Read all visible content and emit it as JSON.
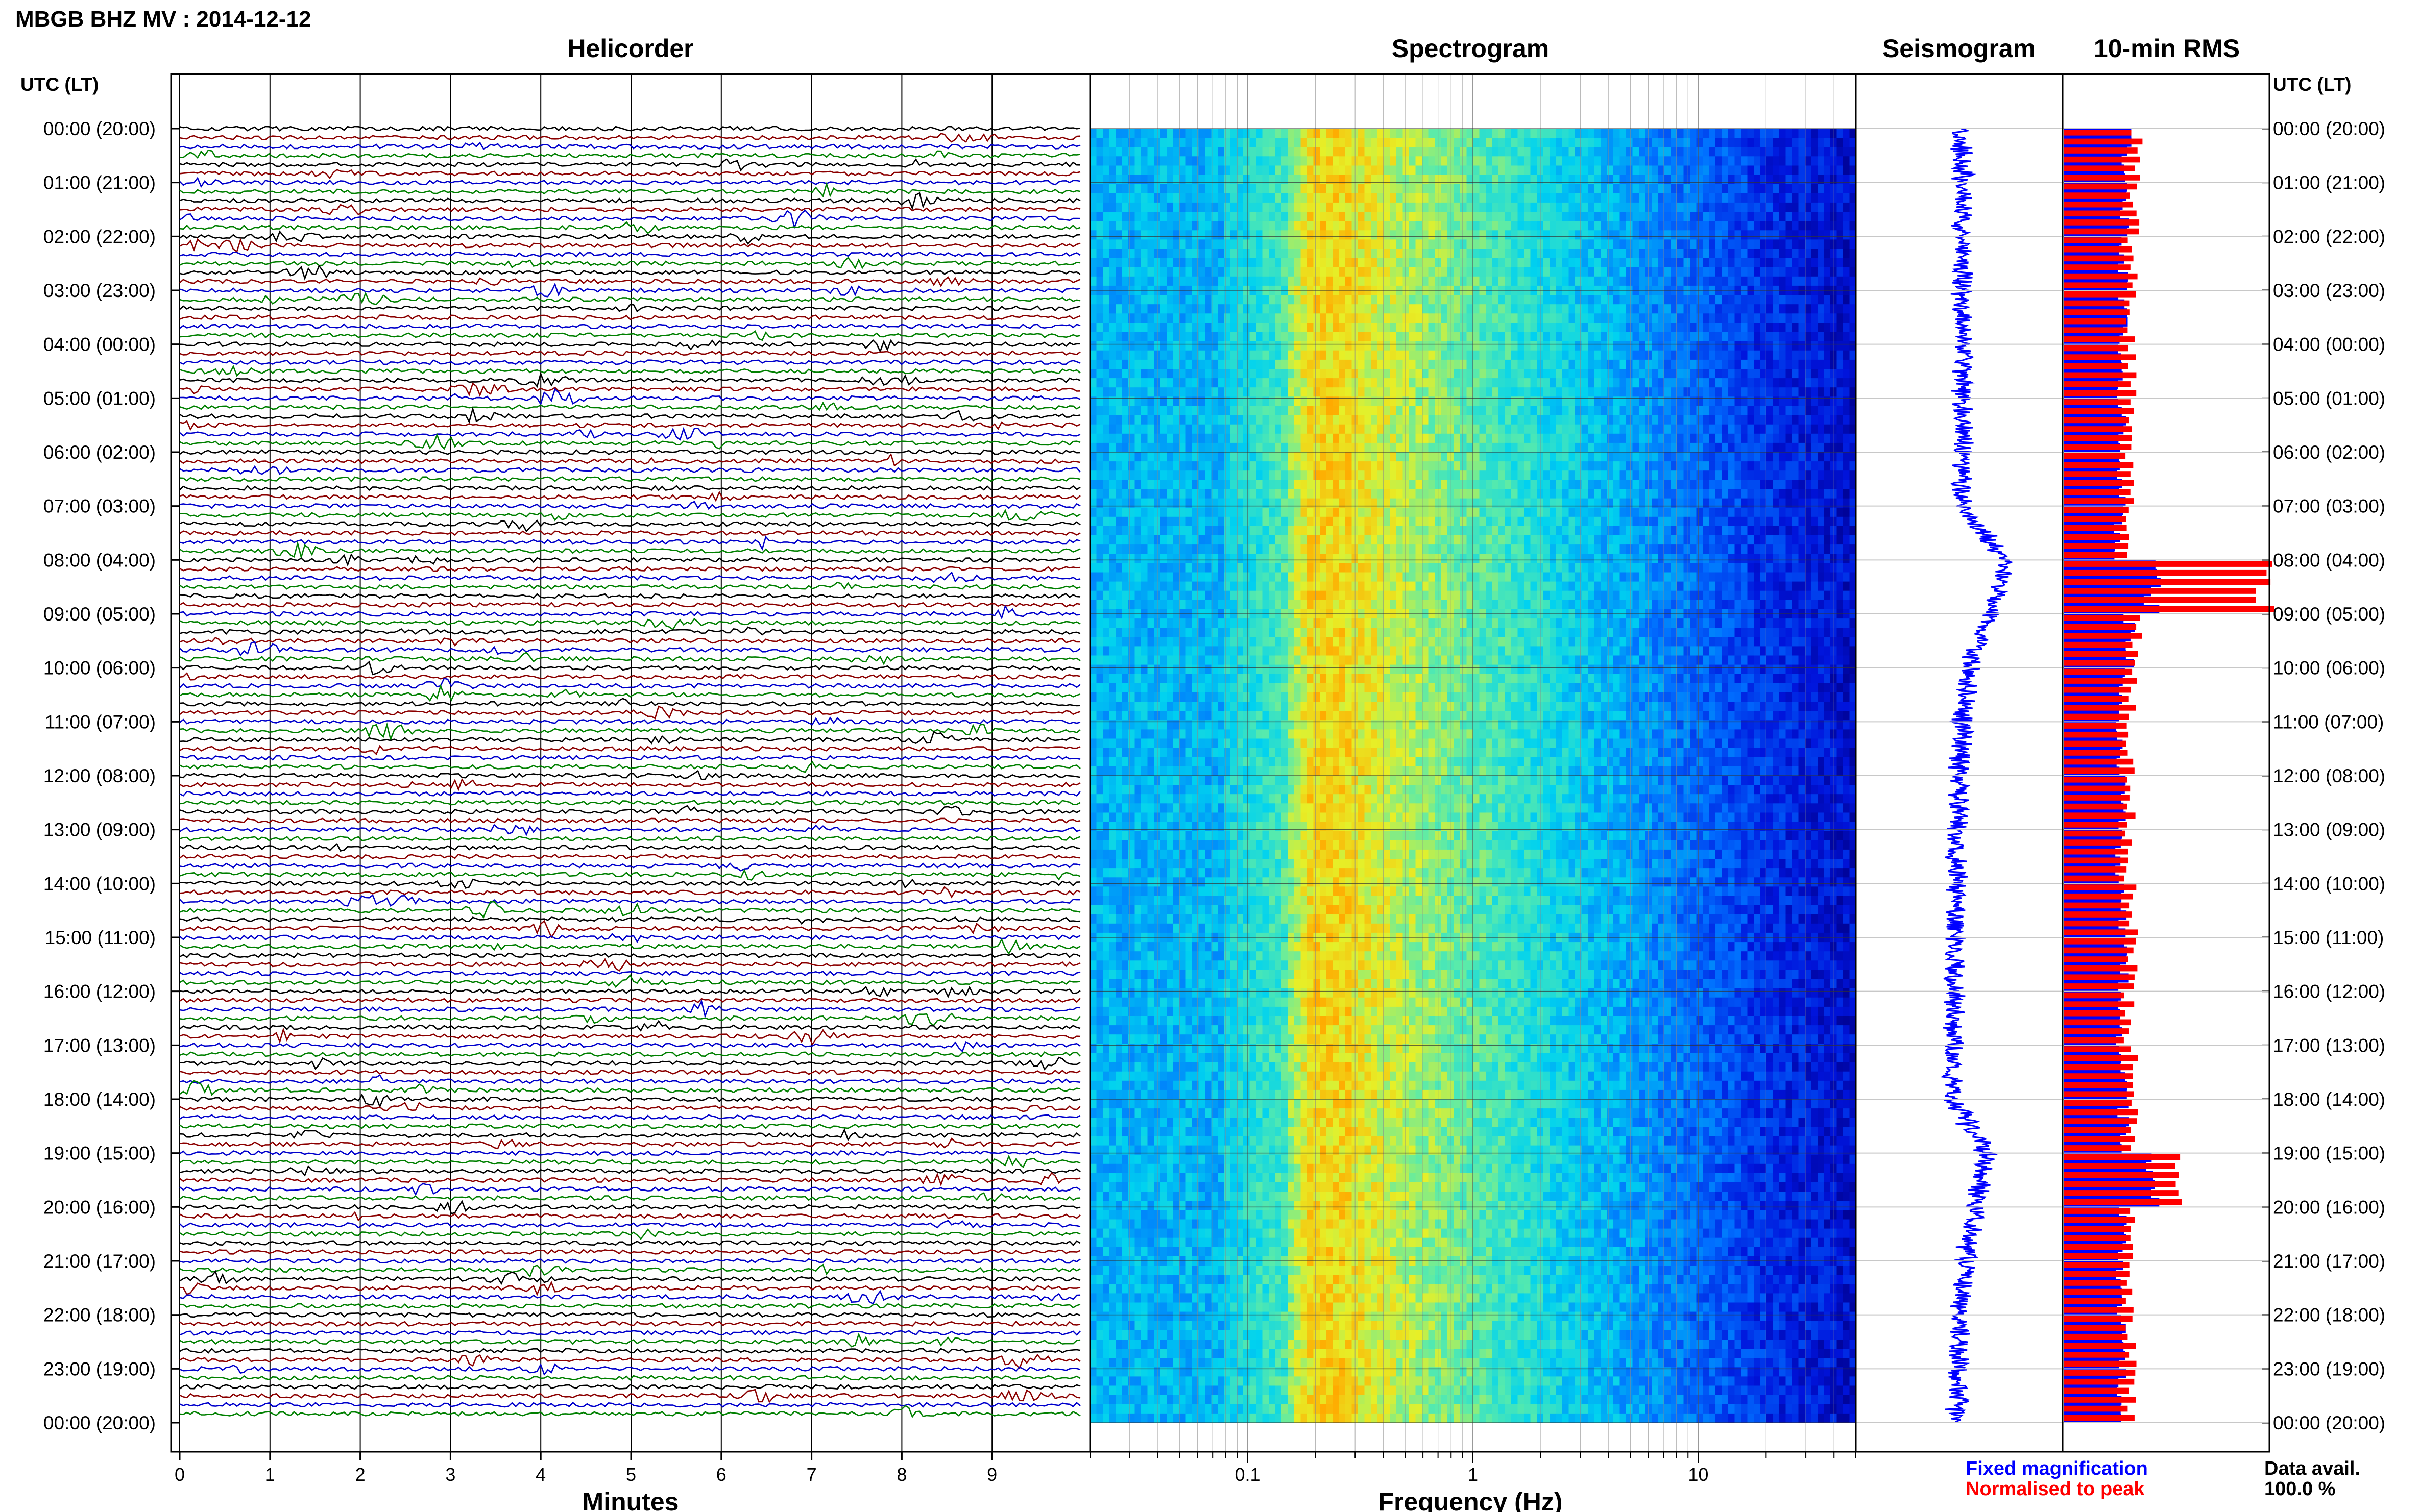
{
  "header": {
    "title": "MBGB BHZ MV : 2014-12-12"
  },
  "panels": {
    "helicorder": "Helicorder",
    "spectrogram": "Spectrogram",
    "seismogram": "Seismogram",
    "rms": "10-min RMS"
  },
  "axes": {
    "time_label_left": "UTC (LT)",
    "time_label_right": "UTC (LT)",
    "helicorder_xlabel": "Minutes",
    "spectrogram_xlabel": "Frequency (Hz)"
  },
  "legend": {
    "fixed": "Fixed magnification",
    "normalised": "Normalised to peak",
    "data_avail_label": "Data avail.",
    "data_avail_value": "100.0 %"
  },
  "colors": {
    "helicorder_traces": [
      "#000000",
      "#8b0000",
      "#0000cc",
      "#008000"
    ],
    "fixed_magnification": "#0000ff",
    "normalised_to_peak": "#ff0000"
  },
  "chart_data": [
    {
      "type": "line",
      "title": "Helicorder",
      "xlabel": "Minutes",
      "xlim": [
        0,
        10
      ],
      "x_ticks": [
        "0",
        "1",
        "2",
        "3",
        "4",
        "5",
        "6",
        "7",
        "8",
        "9"
      ],
      "ylabel": "UTC (LT)",
      "trace_minutes": 10,
      "traces_per_hour": 6,
      "time_ticks": [
        "00:00 (20:00)",
        "01:00 (21:00)",
        "02:00 (22:00)",
        "03:00 (23:00)",
        "04:00 (00:00)",
        "05:00 (01:00)",
        "06:00 (02:00)",
        "07:00 (03:00)",
        "08:00 (04:00)",
        "09:00 (05:00)",
        "10:00 (06:00)",
        "11:00 (07:00)",
        "12:00 (08:00)",
        "13:00 (09:00)",
        "14:00 (10:00)",
        "15:00 (11:00)",
        "16:00 (12:00)",
        "17:00 (13:00)",
        "18:00 (14:00)",
        "19:00 (15:00)",
        "20:00 (16:00)",
        "21:00 (17:00)",
        "22:00 (18:00)",
        "23:00 (19:00)",
        "00:00 (20:00)"
      ]
    },
    {
      "type": "heatmap",
      "title": "Spectrogram",
      "xlabel": "Frequency (Hz)",
      "x_scale": "log",
      "xlim": [
        0.02,
        50
      ],
      "x_ticks": [
        {
          "value": 0.1,
          "label": "0.1"
        },
        {
          "value": 1,
          "label": "1"
        },
        {
          "value": 10,
          "label": "10"
        }
      ],
      "grid": true
    },
    {
      "type": "line",
      "title": "Seismogram",
      "series": [
        {
          "name": "Fixed magnification",
          "color": "#0000ff"
        }
      ],
      "hourly_level": [
        0.1,
        0.1,
        0.1,
        0.09,
        0.1,
        0.1,
        0.1,
        0.1,
        0.8,
        0.55,
        0.2,
        0.1,
        0.05,
        0.02,
        0.0,
        -0.02,
        -0.03,
        -0.05,
        -0.08,
        0.5,
        0.3,
        0.15,
        0.05,
        0.03,
        0.0
      ]
    },
    {
      "type": "bar",
      "title": "10-min RMS",
      "series": [
        {
          "name": "Fixed magnification",
          "color": "#0000ff"
        },
        {
          "name": "Normalised to peak",
          "color": "#ff0000"
        }
      ],
      "hourly_rms_fixed": [
        0.5,
        0.48,
        0.47,
        0.46,
        0.46,
        0.45,
        0.45,
        0.44,
        0.7,
        0.52,
        0.47,
        0.46,
        0.45,
        0.45,
        0.47,
        0.47,
        0.45,
        0.47,
        0.47,
        0.72,
        0.47,
        0.45,
        0.45,
        0.46
      ],
      "hourly_rms_norm": [
        0.36,
        0.35,
        0.34,
        0.33,
        0.33,
        0.33,
        0.32,
        0.32,
        1.0,
        0.36,
        0.34,
        0.33,
        0.33,
        0.32,
        0.34,
        0.34,
        0.32,
        0.34,
        0.34,
        0.55,
        0.34,
        0.33,
        0.33,
        0.33
      ]
    }
  ]
}
